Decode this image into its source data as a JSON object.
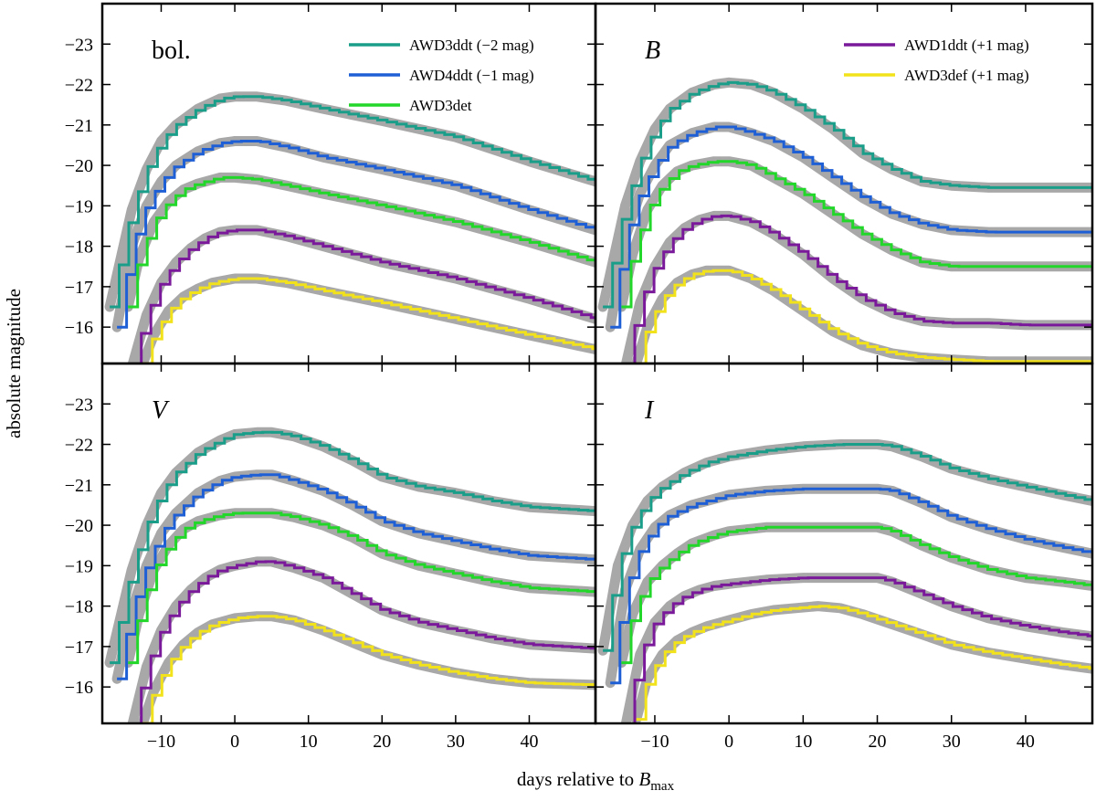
{
  "figure": {
    "ylabel": "absolute magnitude",
    "xlabel_prefix": "days relative to ",
    "xlabel_symbol": "B",
    "xlabel_subscript": "max",
    "xlim": [
      -18,
      49
    ],
    "xticks": [
      -10,
      0,
      10,
      20,
      30,
      40
    ],
    "colors": {
      "envelope": "#a8a8a8",
      "AWD3ddt": "#1a9e8a",
      "AWD4ddt": "#1f5fd6",
      "AWD3det": "#22d62a",
      "AWD1ddt": "#7a1a9a",
      "AWD3def": "#f2e21c"
    }
  },
  "legend_left": [
    {
      "label": "AWD3ddt (−2 mag)",
      "color": "#1a9e8a"
    },
    {
      "label": "AWD4ddt (−1 mag)",
      "color": "#1f5fd6"
    },
    {
      "label": "AWD3det",
      "color": "#22d62a"
    }
  ],
  "legend_right": [
    {
      "label": "AWD1ddt (+1 mag)",
      "color": "#7a1a9a"
    },
    {
      "label": "AWD3def (+1 mag)",
      "color": "#f2e21c"
    }
  ],
  "chart_data": [
    {
      "type": "line",
      "panel": "bol.",
      "italic": false,
      "ylim": [
        -15.1,
        -24.0
      ],
      "yticks": [
        -23,
        -22,
        -21,
        -20,
        -19,
        -18,
        -17,
        -16
      ],
      "ytick_labels": [
        "−23",
        "−22",
        "−21",
        "−20",
        "−19",
        "−18",
        "−17",
        "−16"
      ],
      "series": [
        {
          "name": "AWD3ddt",
          "x": [
            -17,
            -14,
            -12,
            -10,
            -8,
            -5,
            -2,
            0,
            3,
            7,
            12,
            20,
            30,
            40,
            49
          ],
          "y": [
            -16.5,
            -18.9,
            -19.9,
            -20.6,
            -21.0,
            -21.4,
            -21.65,
            -21.7,
            -21.7,
            -21.6,
            -21.4,
            -21.1,
            -20.7,
            -20.1,
            -19.6
          ]
        },
        {
          "name": "AWD4ddt",
          "x": [
            -16,
            -14,
            -12,
            -10,
            -8,
            -5,
            -2,
            0,
            3,
            7,
            12,
            20,
            30,
            40,
            49
          ],
          "y": [
            -16.0,
            -18.0,
            -19.0,
            -19.6,
            -20.0,
            -20.35,
            -20.55,
            -20.6,
            -20.6,
            -20.45,
            -20.2,
            -19.9,
            -19.5,
            -18.9,
            -18.4
          ]
        },
        {
          "name": "AWD3det",
          "x": [
            -14.5,
            -13,
            -11,
            -9,
            -7,
            -5,
            -2,
            0,
            3,
            7,
            12,
            20,
            30,
            40,
            49
          ],
          "y": [
            -16.5,
            -17.7,
            -18.6,
            -19.1,
            -19.4,
            -19.55,
            -19.7,
            -19.7,
            -19.65,
            -19.5,
            -19.3,
            -19.0,
            -18.6,
            -18.1,
            -17.6
          ]
        },
        {
          "name": "AWD1ddt",
          "x": [
            -14,
            -12,
            -10,
            -8,
            -6,
            -4,
            -2,
            0,
            3,
            7,
            12,
            20,
            30,
            40,
            49
          ],
          "y": [
            -15.0,
            -16.3,
            -17.1,
            -17.6,
            -17.95,
            -18.2,
            -18.35,
            -18.4,
            -18.4,
            -18.25,
            -18.0,
            -17.6,
            -17.2,
            -16.7,
            -16.2
          ]
        },
        {
          "name": "AWD3def",
          "x": [
            -12.5,
            -11,
            -9,
            -7,
            -5,
            -3,
            0,
            3,
            7,
            12,
            20,
            30,
            40,
            49
          ],
          "y": [
            -15.1,
            -15.8,
            -16.4,
            -16.75,
            -16.95,
            -17.1,
            -17.2,
            -17.2,
            -17.1,
            -16.9,
            -16.6,
            -16.2,
            -15.8,
            -15.45
          ]
        }
      ]
    },
    {
      "type": "line",
      "panel": "B",
      "italic": true,
      "ylim": [
        -15.1,
        -24.0
      ],
      "yticks": [
        -23,
        -22,
        -21,
        -20,
        -19,
        -18,
        -17,
        -16
      ],
      "ytick_labels": [
        "−23",
        "−22",
        "−21",
        "−20",
        "−19",
        "−18",
        "−17",
        "−16"
      ],
      "series": [
        {
          "name": "AWD3ddt",
          "x": [
            -17,
            -14,
            -12,
            -10,
            -8,
            -5,
            -2,
            0,
            3,
            6,
            10,
            14,
            18,
            22,
            26,
            30,
            35,
            40,
            49
          ],
          "y": [
            -16.5,
            -19.0,
            -20.1,
            -20.9,
            -21.4,
            -21.8,
            -22.0,
            -22.05,
            -22.0,
            -21.8,
            -21.4,
            -20.9,
            -20.3,
            -19.9,
            -19.6,
            -19.5,
            -19.45,
            -19.45,
            -19.45
          ]
        },
        {
          "name": "AWD4ddt",
          "x": [
            -16,
            -14,
            -12,
            -10,
            -8,
            -5,
            -2,
            0,
            3,
            6,
            10,
            14,
            18,
            22,
            26,
            30,
            35,
            40,
            49
          ],
          "y": [
            -16.0,
            -18.2,
            -19.3,
            -20.0,
            -20.5,
            -20.8,
            -20.95,
            -20.95,
            -20.8,
            -20.6,
            -20.2,
            -19.7,
            -19.2,
            -18.8,
            -18.55,
            -18.4,
            -18.35,
            -18.35,
            -18.35
          ]
        },
        {
          "name": "AWD3det",
          "x": [
            -14.5,
            -13,
            -11,
            -9,
            -7,
            -5,
            -2,
            0,
            3,
            6,
            10,
            14,
            18,
            22,
            26,
            30,
            35,
            40,
            49
          ],
          "y": [
            -16.5,
            -17.8,
            -18.9,
            -19.5,
            -19.85,
            -20.0,
            -20.1,
            -20.1,
            -20.0,
            -19.7,
            -19.3,
            -18.8,
            -18.3,
            -17.9,
            -17.6,
            -17.5,
            -17.5,
            -17.5,
            -17.5
          ]
        },
        {
          "name": "AWD1ddt",
          "x": [
            -14,
            -12,
            -10,
            -8,
            -6,
            -4,
            -2,
            0,
            3,
            6,
            10,
            14,
            18,
            22,
            26,
            30,
            35,
            40,
            49
          ],
          "y": [
            -15.0,
            -16.6,
            -17.5,
            -18.1,
            -18.45,
            -18.65,
            -18.75,
            -18.75,
            -18.6,
            -18.3,
            -17.8,
            -17.2,
            -16.7,
            -16.35,
            -16.15,
            -16.1,
            -16.1,
            -16.05,
            -16.05
          ]
        },
        {
          "name": "AWD3def",
          "x": [
            -12.5,
            -11,
            -9,
            -7,
            -5,
            -3,
            0,
            3,
            6,
            10,
            14,
            18,
            22,
            26,
            30,
            35,
            40,
            49
          ],
          "y": [
            -15.1,
            -16.0,
            -16.7,
            -17.1,
            -17.3,
            -17.4,
            -17.4,
            -17.2,
            -16.9,
            -16.4,
            -15.9,
            -15.55,
            -15.35,
            -15.25,
            -15.2,
            -15.15,
            -15.15,
            -15.15
          ]
        }
      ]
    },
    {
      "type": "line",
      "panel": "V",
      "italic": true,
      "ylim": [
        -15.1,
        -24.0
      ],
      "yticks": [
        -23,
        -22,
        -21,
        -20,
        -19,
        -18,
        -17,
        -16
      ],
      "ytick_labels": [
        "−23",
        "−22",
        "−21",
        "−20",
        "−19",
        "−18",
        "−17",
        "−16"
      ],
      "series": [
        {
          "name": "AWD3ddt",
          "x": [
            -17,
            -14,
            -12,
            -10,
            -8,
            -5,
            -2,
            0,
            3,
            5,
            8,
            12,
            16,
            20,
            25,
            30,
            35,
            40,
            49
          ],
          "y": [
            -16.6,
            -18.9,
            -20.0,
            -20.8,
            -21.3,
            -21.8,
            -22.1,
            -22.25,
            -22.3,
            -22.3,
            -22.2,
            -21.95,
            -21.6,
            -21.2,
            -20.95,
            -20.8,
            -20.6,
            -20.45,
            -20.35
          ]
        },
        {
          "name": "AWD4ddt",
          "x": [
            -16,
            -14,
            -12,
            -10,
            -8,
            -5,
            -2,
            0,
            3,
            5,
            8,
            12,
            16,
            20,
            25,
            30,
            35,
            40,
            49
          ],
          "y": [
            -16.2,
            -17.9,
            -19.0,
            -19.8,
            -20.3,
            -20.8,
            -21.1,
            -21.2,
            -21.25,
            -21.25,
            -21.1,
            -20.85,
            -20.5,
            -20.1,
            -19.8,
            -19.6,
            -19.4,
            -19.25,
            -19.15
          ]
        },
        {
          "name": "AWD3det",
          "x": [
            -14.5,
            -13,
            -11,
            -9,
            -7,
            -5,
            -2,
            0,
            3,
            5,
            8,
            12,
            16,
            20,
            25,
            30,
            35,
            40,
            49
          ],
          "y": [
            -16.6,
            -17.8,
            -18.9,
            -19.5,
            -19.9,
            -20.1,
            -20.25,
            -20.3,
            -20.3,
            -20.3,
            -20.2,
            -20.0,
            -19.7,
            -19.3,
            -19.0,
            -18.8,
            -18.6,
            -18.45,
            -18.35
          ]
        },
        {
          "name": "AWD1ddt",
          "x": [
            -14,
            -12,
            -10,
            -8,
            -6,
            -4,
            -2,
            0,
            3,
            5,
            8,
            12,
            16,
            20,
            25,
            30,
            35,
            40,
            49
          ],
          "y": [
            -15.0,
            -16.5,
            -17.4,
            -18.0,
            -18.4,
            -18.7,
            -18.9,
            -19.0,
            -19.1,
            -19.1,
            -18.95,
            -18.7,
            -18.3,
            -17.9,
            -17.6,
            -17.4,
            -17.2,
            -17.05,
            -16.95
          ]
        },
        {
          "name": "AWD3def",
          "x": [
            -12.5,
            -11,
            -9,
            -7,
            -5,
            -3,
            0,
            3,
            5,
            8,
            12,
            16,
            20,
            25,
            30,
            35,
            40,
            49
          ],
          "y": [
            -15.1,
            -15.9,
            -16.6,
            -17.05,
            -17.35,
            -17.55,
            -17.7,
            -17.75,
            -17.75,
            -17.65,
            -17.4,
            -17.1,
            -16.8,
            -16.55,
            -16.35,
            -16.2,
            -16.1,
            -16.05
          ]
        }
      ]
    },
    {
      "type": "line",
      "panel": "I",
      "italic": true,
      "ylim": [
        -15.1,
        -24.0
      ],
      "yticks": [
        -23,
        -22,
        -21,
        -20,
        -19,
        -18,
        -17,
        -16
      ],
      "ytick_labels": [
        "−23",
        "−22",
        "−21",
        "−20",
        "−19",
        "−18",
        "−17",
        "−16"
      ],
      "series": [
        {
          "name": "AWD3ddt",
          "x": [
            -17,
            -15,
            -13,
            -11,
            -9,
            -6,
            -3,
            0,
            5,
            10,
            15,
            20,
            22,
            26,
            30,
            35,
            40,
            45,
            49
          ],
          "y": [
            -16.9,
            -19.0,
            -20.0,
            -20.6,
            -20.95,
            -21.3,
            -21.55,
            -21.7,
            -21.85,
            -21.95,
            -22.0,
            -22.0,
            -21.95,
            -21.7,
            -21.4,
            -21.15,
            -20.95,
            -20.75,
            -20.6
          ]
        },
        {
          "name": "AWD4ddt",
          "x": [
            -16,
            -14,
            -12,
            -10,
            -8,
            -5,
            -2,
            0,
            5,
            10,
            15,
            20,
            22,
            26,
            30,
            35,
            40,
            45,
            49
          ],
          "y": [
            -16.1,
            -18.4,
            -19.4,
            -19.95,
            -20.25,
            -20.5,
            -20.65,
            -20.75,
            -20.85,
            -20.9,
            -20.9,
            -20.9,
            -20.85,
            -20.55,
            -20.2,
            -19.9,
            -19.65,
            -19.45,
            -19.3
          ]
        },
        {
          "name": "AWD3det",
          "x": [
            -14.5,
            -13,
            -11,
            -9,
            -7,
            -5,
            -2,
            0,
            5,
            10,
            15,
            20,
            22,
            26,
            30,
            35,
            40,
            45,
            49
          ],
          "y": [
            -16.6,
            -17.8,
            -18.6,
            -19.0,
            -19.3,
            -19.55,
            -19.75,
            -19.85,
            -19.95,
            -19.95,
            -19.95,
            -19.95,
            -19.85,
            -19.5,
            -19.2,
            -18.9,
            -18.7,
            -18.6,
            -18.5
          ]
        },
        {
          "name": "AWD1ddt",
          "x": [
            -14,
            -12,
            -10,
            -8,
            -6,
            -4,
            -2,
            0,
            5,
            10,
            15,
            20,
            22,
            26,
            30,
            35,
            40,
            45,
            49
          ],
          "y": [
            -15.0,
            -16.8,
            -17.6,
            -18.0,
            -18.25,
            -18.4,
            -18.5,
            -18.55,
            -18.65,
            -18.7,
            -18.7,
            -18.7,
            -18.6,
            -18.3,
            -18.0,
            -17.7,
            -17.5,
            -17.35,
            -17.25
          ]
        },
        {
          "name": "AWD3def",
          "x": [
            -12.5,
            -11,
            -9,
            -7,
            -5,
            -3,
            0,
            3,
            6,
            9,
            12,
            15,
            18,
            22,
            26,
            30,
            35,
            40,
            45,
            49
          ],
          "y": [
            -15.2,
            -16.2,
            -16.8,
            -17.15,
            -17.35,
            -17.5,
            -17.65,
            -17.8,
            -17.9,
            -17.95,
            -18.0,
            -17.95,
            -17.8,
            -17.55,
            -17.3,
            -17.05,
            -16.85,
            -16.7,
            -16.55,
            -16.45
          ]
        }
      ]
    }
  ]
}
